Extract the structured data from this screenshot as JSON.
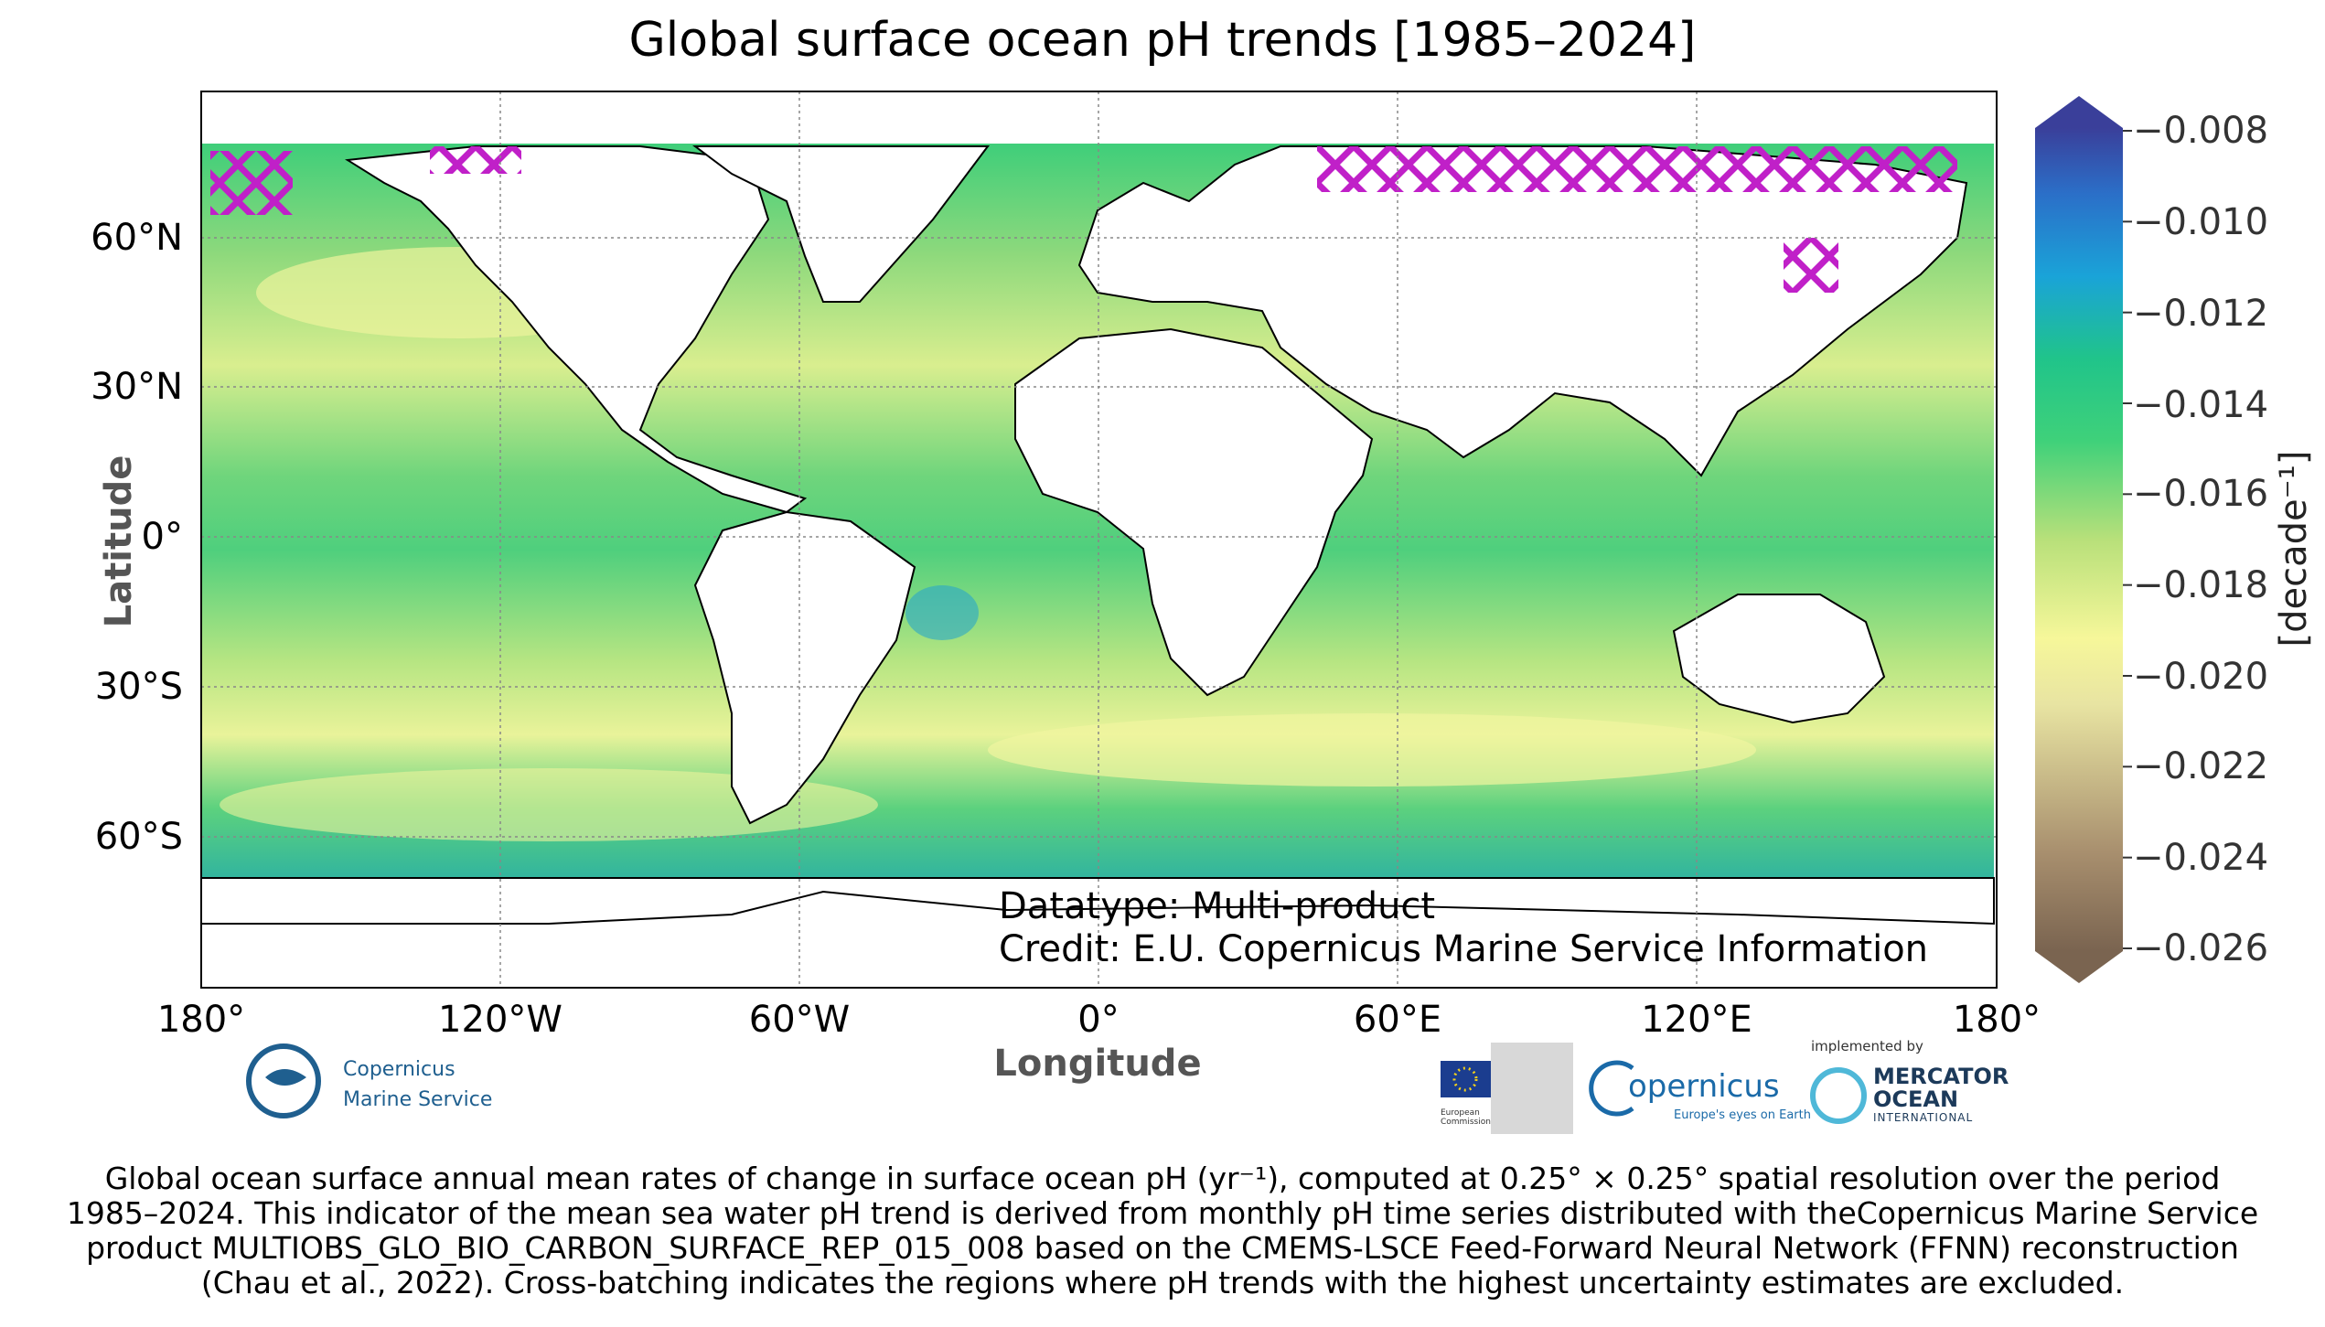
{
  "title": "Global surface ocean pH trends [1985–2024]",
  "axes": {
    "xlabel": "Longitude",
    "ylabel": "Latitude",
    "xticks": [
      "180°",
      "120°W",
      "60°W",
      "0°",
      "60°E",
      "120°E",
      "180°"
    ],
    "yticks": [
      "60°N",
      "30°N",
      "0°",
      "30°S",
      "60°S"
    ]
  },
  "colorbar": {
    "unit": "[decade⁻¹]",
    "ticks": [
      "−0.008",
      "−0.010",
      "−0.012",
      "−0.014",
      "−0.016",
      "−0.018",
      "−0.020",
      "−0.022",
      "−0.024",
      "−0.026"
    ],
    "range": [
      -0.026,
      -0.008
    ],
    "colors": [
      "#7a6450",
      "#a88f6e",
      "#e8e4a2",
      "#f6f79a",
      "#b8e07a",
      "#3fd17a",
      "#20c48a",
      "#1aa3d8",
      "#2b6fc8",
      "#3a3f9a"
    ]
  },
  "annotation": {
    "datatype": "Datatype: Multi-product",
    "credit": "Credit: E.U. Copernicus Marine Service Information"
  },
  "logos": {
    "cms_line1": "Copernicus",
    "cms_line2": "Marine Service",
    "eu_text": "European Commission",
    "copernicus": "opernicus",
    "copernicus_tag": "Europe's eyes on Earth",
    "implemented_by": "implemented by",
    "mercator_1": "MERCATOR",
    "mercator_2": "OCEAN",
    "mercator_3": "INTERNATIONAL"
  },
  "caption": {
    "line1": "Global ocean surface annual mean rates of change in surface ocean pH (yr⁻¹), computed at 0.25° × 0.25° spatial resolution over the period",
    "line2": "1985–2024. This indicator of the mean sea water pH trend is derived from monthly pH time series distributed with theCopernicus Marine Service",
    "line3": "product MULTIOBS_GLO_BIO_CARBON_SURFACE_REP_015_008 based on the CMEMS-LSCE Feed-Forward Neural Network (FFNN) reconstruction",
    "line4": "(Chau et al., 2022). Cross-batching indicates the regions where pH trends with the highest uncertainty estimates are excluded."
  }
}
